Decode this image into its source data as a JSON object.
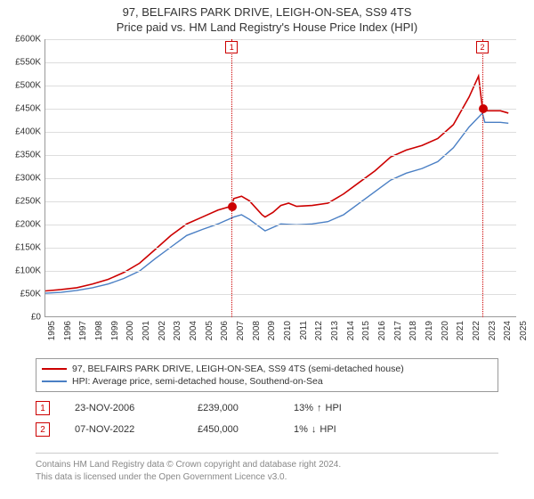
{
  "title": {
    "line1": "97, BELFAIRS PARK DRIVE, LEIGH-ON-SEA, SS9 4TS",
    "line2": "Price paid vs. HM Land Registry's House Price Index (HPI)"
  },
  "chart": {
    "type": "line",
    "background_color": "#ffffff",
    "grid_color": "#dddddd",
    "axis_color": "#999999",
    "x": {
      "min": 1995,
      "max": 2025,
      "ticks": [
        1995,
        1996,
        1997,
        1998,
        1999,
        2000,
        2001,
        2002,
        2003,
        2004,
        2005,
        2006,
        2007,
        2008,
        2009,
        2010,
        2011,
        2012,
        2013,
        2014,
        2015,
        2016,
        2017,
        2018,
        2019,
        2020,
        2021,
        2022,
        2023,
        2024,
        2025
      ],
      "label_fontsize": 10
    },
    "y": {
      "min": 0,
      "max": 600000,
      "ticks": [
        0,
        50000,
        100000,
        150000,
        200000,
        250000,
        300000,
        350000,
        400000,
        450000,
        500000,
        550000,
        600000
      ],
      "tick_labels": [
        "£0",
        "£50K",
        "£100K",
        "£150K",
        "£200K",
        "£250K",
        "£300K",
        "£350K",
        "£400K",
        "£450K",
        "£500K",
        "£550K",
        "£600K"
      ],
      "label_fontsize": 10
    },
    "series": [
      {
        "name": "property",
        "label": "97, BELFAIRS PARK DRIVE, LEIGH-ON-SEA, SS9 4TS (semi-detached house)",
        "color": "#cc0000",
        "line_width": 1.6,
        "points": [
          [
            1995,
            55000
          ],
          [
            1996,
            58000
          ],
          [
            1997,
            62000
          ],
          [
            1998,
            70000
          ],
          [
            1999,
            80000
          ],
          [
            2000,
            95000
          ],
          [
            2001,
            115000
          ],
          [
            2002,
            145000
          ],
          [
            2003,
            175000
          ],
          [
            2004,
            200000
          ],
          [
            2005,
            215000
          ],
          [
            2006,
            230000
          ],
          [
            2006.9,
            239000
          ],
          [
            2007,
            255000
          ],
          [
            2007.5,
            260000
          ],
          [
            2008,
            250000
          ],
          [
            2008.8,
            220000
          ],
          [
            2009,
            215000
          ],
          [
            2009.5,
            225000
          ],
          [
            2010,
            240000
          ],
          [
            2010.5,
            245000
          ],
          [
            2011,
            238000
          ],
          [
            2012,
            240000
          ],
          [
            2013,
            245000
          ],
          [
            2014,
            265000
          ],
          [
            2015,
            290000
          ],
          [
            2016,
            315000
          ],
          [
            2017,
            345000
          ],
          [
            2018,
            360000
          ],
          [
            2019,
            370000
          ],
          [
            2020,
            385000
          ],
          [
            2021,
            415000
          ],
          [
            2022,
            475000
          ],
          [
            2022.6,
            520000
          ],
          [
            2022.85,
            450000
          ],
          [
            2023,
            445000
          ],
          [
            2024,
            445000
          ],
          [
            2024.5,
            440000
          ]
        ]
      },
      {
        "name": "hpi",
        "label": "HPI: Average price, semi-detached house, Southend-on-Sea",
        "color": "#4a7fc4",
        "line_width": 1.4,
        "points": [
          [
            1995,
            50000
          ],
          [
            1996,
            52000
          ],
          [
            1997,
            56000
          ],
          [
            1998,
            62000
          ],
          [
            1999,
            70000
          ],
          [
            2000,
            82000
          ],
          [
            2001,
            98000
          ],
          [
            2002,
            125000
          ],
          [
            2003,
            150000
          ],
          [
            2004,
            175000
          ],
          [
            2005,
            188000
          ],
          [
            2006,
            200000
          ],
          [
            2007,
            215000
          ],
          [
            2007.5,
            220000
          ],
          [
            2008,
            210000
          ],
          [
            2008.8,
            190000
          ],
          [
            2009,
            185000
          ],
          [
            2010,
            200000
          ],
          [
            2011,
            198000
          ],
          [
            2012,
            200000
          ],
          [
            2013,
            205000
          ],
          [
            2014,
            220000
          ],
          [
            2015,
            245000
          ],
          [
            2016,
            270000
          ],
          [
            2017,
            295000
          ],
          [
            2018,
            310000
          ],
          [
            2019,
            320000
          ],
          [
            2020,
            335000
          ],
          [
            2021,
            365000
          ],
          [
            2022,
            410000
          ],
          [
            2022.85,
            440000
          ],
          [
            2023,
            420000
          ],
          [
            2024,
            420000
          ],
          [
            2024.5,
            418000
          ]
        ]
      }
    ],
    "sale_markers": [
      {
        "n": "1",
        "x": 2006.9,
        "y": 239000
      },
      {
        "n": "2",
        "x": 2022.85,
        "y": 450000
      }
    ],
    "marker_label_y_top": 10
  },
  "legend": {
    "border_color": "#999999",
    "fontsize": 10.5
  },
  "sales": [
    {
      "n": "1",
      "date": "23-NOV-2006",
      "price": "£239,000",
      "hpi_pct": "13%",
      "hpi_dir": "up",
      "hpi_suffix": "HPI"
    },
    {
      "n": "2",
      "date": "07-NOV-2022",
      "price": "£450,000",
      "hpi_pct": "1%",
      "hpi_dir": "down",
      "hpi_suffix": "HPI"
    }
  ],
  "footer": {
    "line1": "Contains HM Land Registry data © Crown copyright and database right 2024.",
    "line2": "This data is licensed under the Open Government Licence v3.0."
  },
  "colors": {
    "marker_border": "#cc0000",
    "marker_text": "#cc0000",
    "footer_text": "#888888",
    "footer_rule": "#cccccc"
  }
}
